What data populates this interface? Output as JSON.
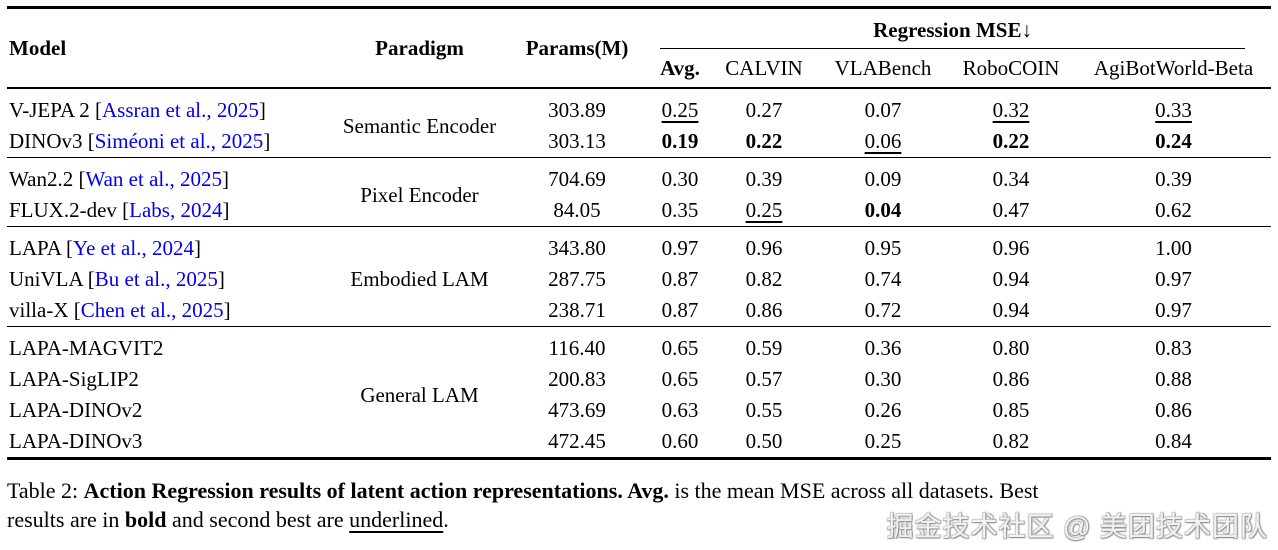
{
  "colors": {
    "citation_blue": "#0000EE",
    "text": "#000000",
    "rule": "#000000"
  },
  "table": {
    "headers": {
      "model": "Model",
      "paradigm": "Paradigm",
      "params": "Params(M)",
      "mse_group": "Regression MSE↓",
      "subcols": [
        "Avg.",
        "CALVIN",
        "VLABench",
        "RoboCOIN",
        "AgiBotWorld-Beta"
      ]
    },
    "groups": [
      {
        "paradigm": "Semantic Encoder",
        "rows": [
          {
            "model_prefix": "V-JEPA 2 [",
            "cite": "Assran et al., 2025",
            "model_suffix": "]",
            "params": "303.89",
            "v": [
              {
                "t": "0.25",
                "f": "underline"
              },
              {
                "t": "0.27",
                "f": "plain"
              },
              {
                "t": "0.07",
                "f": "plain"
              },
              {
                "t": "0.32",
                "f": "underline"
              },
              {
                "t": "0.33",
                "f": "underline"
              }
            ]
          },
          {
            "model_prefix": "DINOv3 [",
            "cite": "Siméoni et al., 2025",
            "model_suffix": "]",
            "params": "303.13",
            "v": [
              {
                "t": "0.19",
                "f": "bold"
              },
              {
                "t": "0.22",
                "f": "bold"
              },
              {
                "t": "0.06",
                "f": "underline"
              },
              {
                "t": "0.22",
                "f": "bold"
              },
              {
                "t": "0.24",
                "f": "bold"
              }
            ]
          }
        ]
      },
      {
        "paradigm": "Pixel Encoder",
        "rows": [
          {
            "model_prefix": "Wan2.2 [",
            "cite": "Wan et al., 2025",
            "model_suffix": "]",
            "params": "704.69",
            "v": [
              {
                "t": "0.30",
                "f": "plain"
              },
              {
                "t": "0.39",
                "f": "plain"
              },
              {
                "t": "0.09",
                "f": "plain"
              },
              {
                "t": "0.34",
                "f": "plain"
              },
              {
                "t": "0.39",
                "f": "plain"
              }
            ]
          },
          {
            "model_prefix": "FLUX.2-dev [",
            "cite": "Labs, 2024",
            "model_suffix": "]",
            "params": "84.05",
            "v": [
              {
                "t": "0.35",
                "f": "plain"
              },
              {
                "t": "0.25",
                "f": "underline"
              },
              {
                "t": "0.04",
                "f": "bold"
              },
              {
                "t": "0.47",
                "f": "plain"
              },
              {
                "t": "0.62",
                "f": "plain"
              }
            ]
          }
        ]
      },
      {
        "paradigm": "Embodied LAM",
        "rows": [
          {
            "model_prefix": "LAPA [",
            "cite": "Ye et al., 2024",
            "model_suffix": "]",
            "params": "343.80",
            "v": [
              {
                "t": "0.97",
                "f": "plain"
              },
              {
                "t": "0.96",
                "f": "plain"
              },
              {
                "t": "0.95",
                "f": "plain"
              },
              {
                "t": "0.96",
                "f": "plain"
              },
              {
                "t": "1.00",
                "f": "plain"
              }
            ]
          },
          {
            "model_prefix": "UniVLA [",
            "cite": "Bu et al., 2025",
            "model_suffix": "]",
            "params": "287.75",
            "v": [
              {
                "t": "0.87",
                "f": "plain"
              },
              {
                "t": "0.82",
                "f": "plain"
              },
              {
                "t": "0.74",
                "f": "plain"
              },
              {
                "t": "0.94",
                "f": "plain"
              },
              {
                "t": "0.97",
                "f": "plain"
              }
            ]
          },
          {
            "model_prefix": "villa-X [",
            "cite": "Chen et al., 2025",
            "model_suffix": "]",
            "params": "238.71",
            "v": [
              {
                "t": "0.87",
                "f": "plain"
              },
              {
                "t": "0.86",
                "f": "plain"
              },
              {
                "t": "0.72",
                "f": "plain"
              },
              {
                "t": "0.94",
                "f": "plain"
              },
              {
                "t": "0.97",
                "f": "plain"
              }
            ]
          }
        ]
      },
      {
        "paradigm": "General LAM",
        "rows": [
          {
            "model_prefix": "LAPA-MAGVIT2",
            "params": "116.40",
            "v": [
              {
                "t": "0.65",
                "f": "plain"
              },
              {
                "t": "0.59",
                "f": "plain"
              },
              {
                "t": "0.36",
                "f": "plain"
              },
              {
                "t": "0.80",
                "f": "plain"
              },
              {
                "t": "0.83",
                "f": "plain"
              }
            ]
          },
          {
            "model_prefix": "LAPA-SigLIP2",
            "params": "200.83",
            "v": [
              {
                "t": "0.65",
                "f": "plain"
              },
              {
                "t": "0.57",
                "f": "plain"
              },
              {
                "t": "0.30",
                "f": "plain"
              },
              {
                "t": "0.86",
                "f": "plain"
              },
              {
                "t": "0.88",
                "f": "plain"
              }
            ]
          },
          {
            "model_prefix": "LAPA-DINOv2",
            "params": "473.69",
            "v": [
              {
                "t": "0.63",
                "f": "plain"
              },
              {
                "t": "0.55",
                "f": "plain"
              },
              {
                "t": "0.26",
                "f": "plain"
              },
              {
                "t": "0.85",
                "f": "plain"
              },
              {
                "t": "0.86",
                "f": "plain"
              }
            ]
          },
          {
            "model_prefix": "LAPA-DINOv3",
            "params": "472.45",
            "v": [
              {
                "t": "0.60",
                "f": "plain"
              },
              {
                "t": "0.50",
                "f": "plain"
              },
              {
                "t": "0.25",
                "f": "plain"
              },
              {
                "t": "0.82",
                "f": "plain"
              },
              {
                "t": "0.84",
                "f": "plain"
              }
            ]
          }
        ]
      }
    ]
  },
  "caption": {
    "line1": [
      {
        "t": "Table 2: ",
        "f": "plain"
      },
      {
        "t": "Action Regression results of latent action representations. Avg.",
        "f": "bold"
      },
      {
        "t": " is the mean MSE across all datasets. Best",
        "f": "plain"
      }
    ],
    "line2": [
      {
        "t": "results are in ",
        "f": "plain"
      },
      {
        "t": "bold",
        "f": "bold"
      },
      {
        "t": " and second best are ",
        "f": "plain"
      },
      {
        "t": "underlined",
        "f": "underline"
      },
      {
        "t": ".",
        "f": "plain"
      }
    ]
  },
  "watermark": "掘金技术社区 @ 美团技术团队"
}
